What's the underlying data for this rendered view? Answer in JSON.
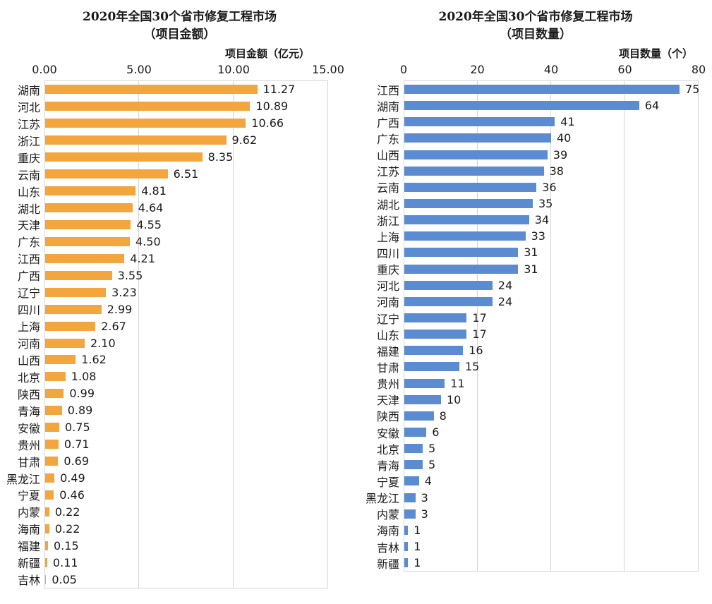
{
  "chart_data": [
    {
      "type": "bar",
      "orientation": "horizontal",
      "title": "2020年全国30个省市修复工程市场（项目金额）",
      "title_lines": [
        "2020年全国30个省市修复工程市场",
        "（项目金额）"
      ],
      "axis_title": "项目金额（亿元）",
      "xlim": [
        0,
        15
      ],
      "xticks": [
        "0.00",
        "5.00",
        "10.00",
        "15.00"
      ],
      "tick_values": [
        0,
        5,
        10,
        15
      ],
      "grid": true,
      "bar_color": "#F3A53E",
      "categories": [
        "湖南",
        "河北",
        "江苏",
        "浙江",
        "重庆",
        "云南",
        "山东",
        "湖北",
        "天津",
        "广东",
        "江西",
        "广西",
        "辽宁",
        "四川",
        "上海",
        "河南",
        "山西",
        "北京",
        "陕西",
        "青海",
        "安徽",
        "贵州",
        "甘肃",
        "黑龙江",
        "宁夏",
        "内蒙",
        "海南",
        "福建",
        "新疆",
        "吉林"
      ],
      "values": [
        11.27,
        10.89,
        10.66,
        9.62,
        8.35,
        6.51,
        4.81,
        4.64,
        4.55,
        4.5,
        4.21,
        3.55,
        3.23,
        2.99,
        2.67,
        2.1,
        1.62,
        1.08,
        0.99,
        0.89,
        0.75,
        0.71,
        0.69,
        0.49,
        0.46,
        0.22,
        0.22,
        0.15,
        0.11,
        0.05
      ],
      "value_labels": [
        "11.27",
        "10.89",
        "10.66",
        "9.62",
        "8.35",
        "6.51",
        "4.81",
        "4.64",
        "4.55",
        "4.50",
        "4.21",
        "3.55",
        "3.23",
        "2.99",
        "2.67",
        "2.10",
        "1.62",
        "1.08",
        "0.99",
        "0.89",
        "0.75",
        "0.71",
        "0.69",
        "0.49",
        "0.46",
        "0.22",
        "0.22",
        "0.15",
        "0.11",
        "0.05"
      ]
    },
    {
      "type": "bar",
      "orientation": "horizontal",
      "title": "2020年全国30个省市修复工程市场（项目数量）",
      "title_lines": [
        "2020年全国30个省市修复工程市场",
        "（项目数量）"
      ],
      "axis_title": "项目数量（个）",
      "xlim": [
        0,
        80
      ],
      "xticks": [
        "0",
        "20",
        "40",
        "60",
        "80"
      ],
      "tick_values": [
        0,
        20,
        40,
        60,
        80
      ],
      "grid": true,
      "bar_color": "#5B8BD0",
      "categories": [
        "江西",
        "湖南",
        "广西",
        "广东",
        "山西",
        "江苏",
        "云南",
        "湖北",
        "浙江",
        "上海",
        "四川",
        "重庆",
        "河北",
        "河南",
        "辽宁",
        "山东",
        "福建",
        "甘肃",
        "贵州",
        "天津",
        "陕西",
        "安徽",
        "北京",
        "青海",
        "宁夏",
        "黑龙江",
        "内蒙",
        "海南",
        "吉林",
        "新疆"
      ],
      "values": [
        75,
        64,
        41,
        40,
        39,
        38,
        36,
        35,
        34,
        33,
        31,
        31,
        24,
        24,
        17,
        17,
        16,
        15,
        11,
        10,
        8,
        6,
        5,
        5,
        4,
        3,
        3,
        1,
        1,
        1
      ],
      "value_labels": [
        "75",
        "64",
        "41",
        "40",
        "39",
        "38",
        "36",
        "35",
        "34",
        "33",
        "31",
        "31",
        "24",
        "24",
        "17",
        "17",
        "16",
        "15",
        "11",
        "10",
        "8",
        "6",
        "5",
        "5",
        "4",
        "3",
        "3",
        "1",
        "1",
        "1"
      ]
    }
  ]
}
